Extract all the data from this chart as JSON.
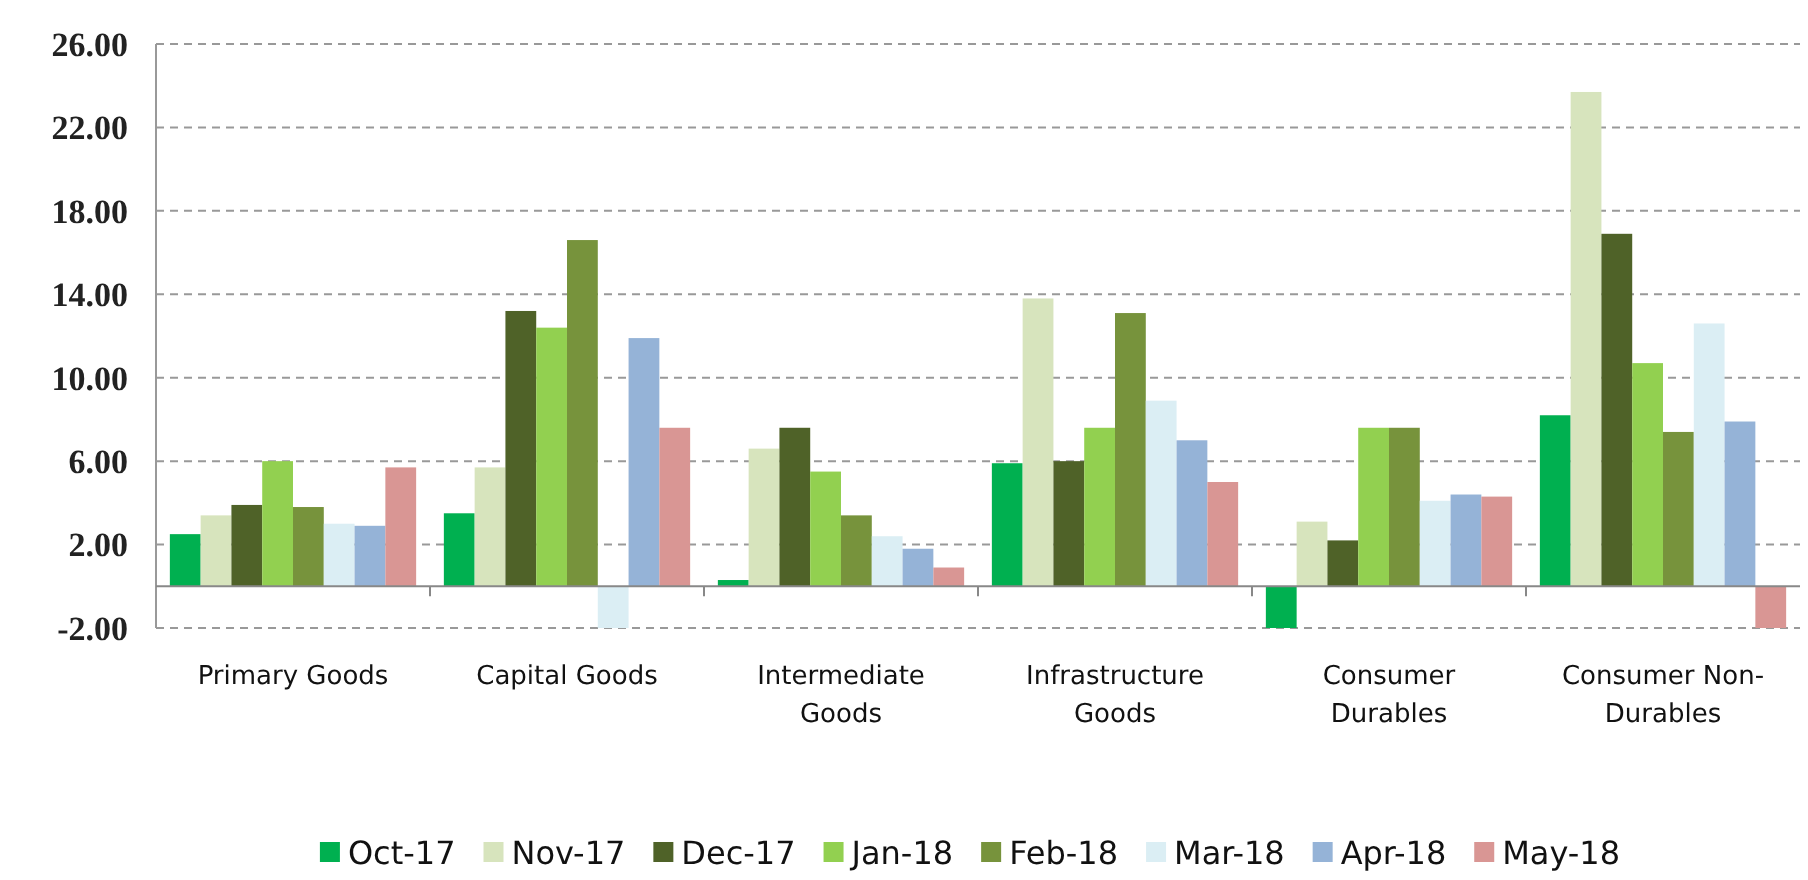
{
  "chart_data": {
    "type": "bar",
    "categories": [
      "Primary Goods",
      "Capital Goods",
      "Intermediate Goods",
      "Infrastructure Goods",
      "Consumer Durables",
      "Consumer Non-Durables"
    ],
    "series": [
      {
        "name": "Oct-17",
        "color": "#00b050",
        "values": [
          2.5,
          3.5,
          0.3,
          5.9,
          -2.0,
          8.2
        ]
      },
      {
        "name": "Nov-17",
        "color": "#d7e4bd",
        "values": [
          3.4,
          5.7,
          6.6,
          13.8,
          3.1,
          23.7
        ]
      },
      {
        "name": "Dec-17",
        "color": "#4f6228",
        "values": [
          3.9,
          13.2,
          7.6,
          6.0,
          2.2,
          16.9
        ]
      },
      {
        "name": "Jan-18",
        "color": "#92d050",
        "values": [
          6.0,
          12.4,
          5.5,
          7.6,
          7.6,
          10.7
        ]
      },
      {
        "name": "Feb-18",
        "color": "#77933c",
        "values": [
          3.8,
          16.6,
          3.4,
          13.1,
          7.6,
          7.4
        ]
      },
      {
        "name": "Mar-18",
        "color": "#dbeef4",
        "values": [
          3.0,
          -2.0,
          2.4,
          8.9,
          4.1,
          12.6
        ]
      },
      {
        "name": "Apr-18",
        "color": "#95b3d7",
        "values": [
          2.9,
          11.9,
          1.8,
          7.0,
          4.4,
          7.9
        ]
      },
      {
        "name": "May-18",
        "color": "#d99694",
        "values": [
          5.7,
          7.6,
          0.9,
          5.0,
          4.3,
          -2.0
        ]
      }
    ],
    "ylim": [
      -2,
      26
    ],
    "yticks": [
      {
        "value": -2,
        "label": "-2.00"
      },
      {
        "value": 2,
        "label": "2.00"
      },
      {
        "value": 6,
        "label": "6.00"
      },
      {
        "value": 10,
        "label": "10.00"
      },
      {
        "value": 14,
        "label": "14.00"
      },
      {
        "value": 18,
        "label": "18.00"
      },
      {
        "value": 22,
        "label": "22.00"
      },
      {
        "value": 26,
        "label": "26.00"
      }
    ],
    "grid": "y",
    "legend": "bottom"
  }
}
